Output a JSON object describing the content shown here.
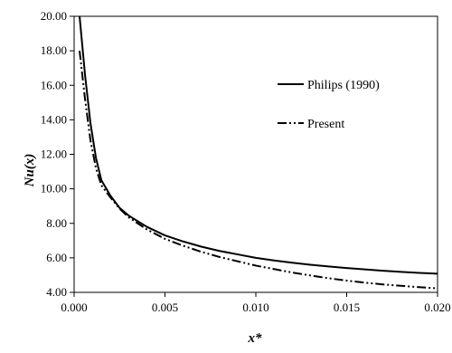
{
  "chart_data": {
    "type": "line",
    "title": "",
    "xlabel": "x*",
    "ylabel": "Nu(x)",
    "xlim": [
      0,
      0.02
    ],
    "ylim": [
      4,
      20
    ],
    "xticks": [
      "0.000",
      "0.005",
      "0.010",
      "0.015",
      "0.020"
    ],
    "yticks": [
      "4.00",
      "6.00",
      "8.00",
      "10.00",
      "12.00",
      "14.00",
      "16.00",
      "18.00",
      "20.00"
    ],
    "grid": false,
    "legend_position": "top-right",
    "series": [
      {
        "name": "Philips  (1990)",
        "style": "solid",
        "color": "#000000",
        "x": [
          0.0003,
          0.0006,
          0.0009,
          0.0012,
          0.0015,
          0.002,
          0.0025,
          0.003,
          0.004,
          0.005,
          0.006,
          0.007,
          0.008,
          0.009,
          0.01,
          0.011,
          0.012,
          0.013,
          0.014,
          0.015,
          0.016,
          0.017,
          0.018,
          0.019,
          0.02
        ],
        "y": [
          20.0,
          16.6,
          13.8,
          11.8,
          10.5,
          9.6,
          8.9,
          8.45,
          7.8,
          7.3,
          6.95,
          6.65,
          6.4,
          6.2,
          6.0,
          5.85,
          5.72,
          5.6,
          5.5,
          5.41,
          5.33,
          5.25,
          5.19,
          5.13,
          5.08
        ]
      },
      {
        "name": "Present",
        "style": "dash-dot-dot",
        "color": "#000000",
        "x": [
          0.0003,
          0.0006,
          0.0009,
          0.0012,
          0.0015,
          0.002,
          0.0025,
          0.003,
          0.004,
          0.005,
          0.006,
          0.007,
          0.008,
          0.009,
          0.01,
          0.011,
          0.012,
          0.013,
          0.014,
          0.015,
          0.016,
          0.017,
          0.018,
          0.019,
          0.02
        ],
        "y": [
          18.0,
          15.2,
          12.8,
          11.2,
          10.2,
          9.5,
          8.85,
          8.35,
          7.65,
          7.1,
          6.7,
          6.35,
          6.05,
          5.8,
          5.55,
          5.35,
          5.15,
          4.98,
          4.82,
          4.68,
          4.56,
          4.46,
          4.38,
          4.3,
          4.23
        ]
      }
    ]
  }
}
